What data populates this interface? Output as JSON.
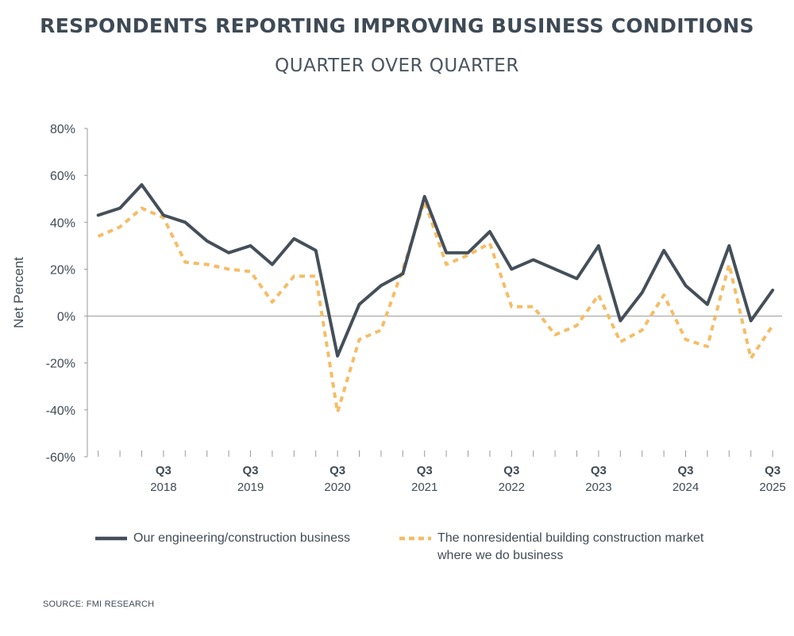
{
  "title": "RESPONDENTS REPORTING IMPROVING BUSINESS CONDITIONS",
  "subtitle": "QUARTER OVER QUARTER",
  "source": "SOURCE: FMI RESEARCH",
  "colors": {
    "series1": "#444f59",
    "series2": "#f5bd66",
    "axis": "#9a9a9a",
    "text": "#404b55"
  },
  "chart_data": {
    "type": "line",
    "ylabel": "Net Percent",
    "ylim": [
      -60,
      80
    ],
    "yticks": [
      80,
      60,
      40,
      20,
      0,
      -20,
      -40,
      -60
    ],
    "ytick_labels": [
      "80%",
      "60%",
      "40%",
      "20%",
      "0%",
      "-20%",
      "-40%",
      "-60%"
    ],
    "x_quarters": [
      "Q4 2017",
      "Q1 2018",
      "Q2 2018",
      "Q3 2018",
      "Q4 2018",
      "Q1 2019",
      "Q2 2019",
      "Q3 2019",
      "Q4 2019",
      "Q1 2020",
      "Q2 2020",
      "Q3 2020",
      "Q4 2020",
      "Q1 2021",
      "Q2 2021",
      "Q3 2021",
      "Q4 2021",
      "Q1 2022",
      "Q2 2022",
      "Q3 2022",
      "Q4 2022",
      "Q1 2023",
      "Q2 2023",
      "Q3 2023",
      "Q4 2023",
      "Q1 2024",
      "Q2 2024",
      "Q3 2024",
      "Q4 2024",
      "Q1 2025",
      "Q2 2025",
      "Q3 2025"
    ],
    "xtick_labels": [
      {
        "q": "Q3",
        "year": "2018"
      },
      {
        "q": "Q3",
        "year": "2019"
      },
      {
        "q": "Q3",
        "year": "2020"
      },
      {
        "q": "Q3",
        "year": "2021"
      },
      {
        "q": "Q3",
        "year": "2022"
      },
      {
        "q": "Q3",
        "year": "2023"
      },
      {
        "q": "Q3",
        "year": "2024"
      },
      {
        "q": "Q3",
        "year": "2025"
      }
    ],
    "series": [
      {
        "name": "Our engineering/construction business",
        "style": "solid",
        "values": [
          43,
          46,
          56,
          43,
          40,
          32,
          27,
          30,
          22,
          33,
          28,
          -17,
          5,
          13,
          18,
          51,
          27,
          27,
          36,
          20,
          24,
          20,
          16,
          30,
          -2,
          10,
          28,
          13,
          5,
          30,
          -2,
          11
        ]
      },
      {
        "name": "The nonresidential building construction market where we do business",
        "style": "dashed",
        "values": [
          34,
          38,
          46,
          42,
          23,
          22,
          20,
          19,
          6,
          17,
          17,
          -41,
          -10,
          -6,
          20,
          49,
          22,
          26,
          31,
          4,
          4,
          -8,
          -4,
          9,
          -11,
          -6,
          9,
          -10,
          -13,
          22,
          -18,
          -4
        ]
      }
    ],
    "grid": false,
    "legend": "bottom"
  }
}
